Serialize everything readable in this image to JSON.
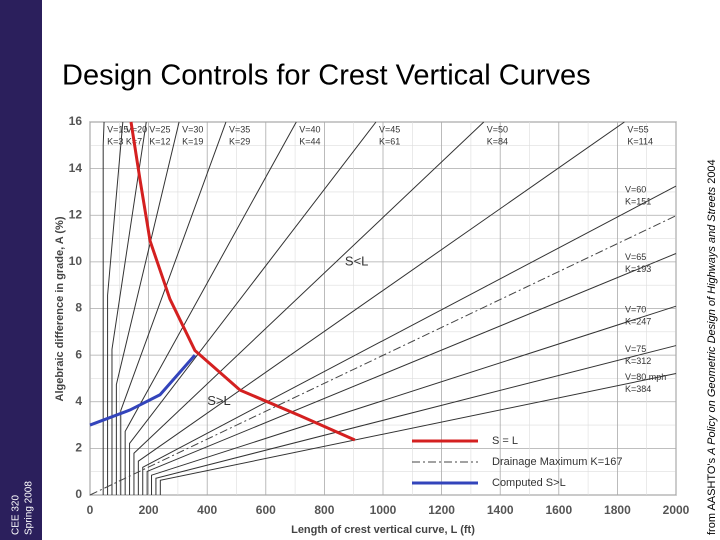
{
  "slide": {
    "side_label": [
      "CEE 320",
      "Spring 2008"
    ],
    "title": "Design Controls for Crest Vertical Curves",
    "source": [
      "from AASHTO's ",
      "A Policy on Geometric Design of Highways and Streets",
      " 2004"
    ]
  },
  "chart_data": {
    "type": "line",
    "xlabel": "Length of crest vertical curve, L (ft)",
    "ylabel": "Algebraic difference in grade, A (%)",
    "xlim": [
      0,
      2000
    ],
    "ylim": [
      0,
      16
    ],
    "xticks": [
      0,
      200,
      400,
      600,
      800,
      1000,
      1200,
      1400,
      1600,
      1800,
      2000
    ],
    "yticks": [
      0,
      2,
      4,
      6,
      8,
      10,
      12,
      14,
      16
    ],
    "grid": true,
    "annotations": [
      {
        "text": "S<L",
        "x": 870,
        "y": 10
      },
      {
        "text": "S>L",
        "x": 400,
        "y": 4
      }
    ],
    "series": [
      {
        "name": "V=15",
        "label": "K=3",
        "color": "#333333",
        "x": [
          45,
          45,
          48
        ],
        "values": [
          0,
          15,
          16
        ]
      },
      {
        "name": "V=20",
        "label": "K=7",
        "color": "#333333",
        "x": [
          60,
          60,
          112
        ],
        "values": [
          0,
          8.57,
          16
        ]
      },
      {
        "name": "V=25",
        "label": "K=12",
        "color": "#333333",
        "x": [
          75,
          75,
          192
        ],
        "values": [
          0,
          6.25,
          16
        ]
      },
      {
        "name": "V=30",
        "label": "K=19",
        "color": "#333333",
        "x": [
          90,
          90,
          304
        ],
        "values": [
          0,
          4.74,
          16
        ]
      },
      {
        "name": "V=35",
        "label": "K=29",
        "color": "#333333",
        "x": [
          105,
          105,
          464
        ],
        "values": [
          0,
          3.62,
          16
        ]
      },
      {
        "name": "V=40",
        "label": "K=44",
        "color": "#333333",
        "x": [
          120,
          120,
          704
        ],
        "values": [
          0,
          2.73,
          16
        ]
      },
      {
        "name": "V=45",
        "label": "K=61",
        "color": "#333333",
        "x": [
          135,
          135,
          976
        ],
        "values": [
          0,
          2.21,
          16
        ]
      },
      {
        "name": "V=50",
        "label": "K=84",
        "color": "#333333",
        "x": [
          150,
          150,
          1344
        ],
        "values": [
          0,
          1.79,
          16
        ]
      },
      {
        "name": "V=55",
        "label": "K=114",
        "color": "#333333",
        "x": [
          165,
          165,
          1824
        ],
        "values": [
          0,
          1.45,
          16
        ]
      },
      {
        "name": "V=60",
        "label": "K=151",
        "color": "#333333",
        "x": [
          180,
          180,
          2000
        ],
        "values": [
          0,
          1.19,
          13.25
        ]
      },
      {
        "name": "V=65",
        "label": "K=193",
        "color": "#333333",
        "x": [
          195,
          195,
          2000
        ],
        "values": [
          0,
          1.01,
          10.36
        ]
      },
      {
        "name": "V=70",
        "label": "K=247",
        "color": "#333333",
        "x": [
          210,
          210,
          2000
        ],
        "values": [
          0,
          0.85,
          8.1
        ]
      },
      {
        "name": "V=75",
        "label": "K=312",
        "color": "#333333",
        "x": [
          225,
          225,
          2000
        ],
        "values": [
          0,
          0.72,
          6.41
        ]
      },
      {
        "name": "V=80 mph",
        "label": "K=384",
        "color": "#333333",
        "x": [
          240,
          240,
          2000
        ],
        "values": [
          0,
          0.63,
          5.21
        ]
      },
      {
        "name": "S = L",
        "legend": true,
        "color": "#d42020",
        "width": 3,
        "x": [
          140,
          171,
          205,
          273,
          358,
          512,
          717,
          904
        ],
        "values": [
          16,
          13.5,
          10.9,
          8.4,
          6.2,
          4.5,
          3.4,
          2.36
        ]
      },
      {
        "name": "Drainage Maximum K=167",
        "legend": true,
        "dash": true,
        "color": "#444444",
        "x": [
          0,
          2000
        ],
        "values": [
          0,
          11.98
        ]
      },
      {
        "name": "Computed S>L",
        "legend": true,
        "color": "#3344bb",
        "width": 3,
        "x": [
          0,
          137,
          239,
          358
        ],
        "values": [
          3,
          3.65,
          4.3,
          6.0
        ]
      }
    ]
  }
}
